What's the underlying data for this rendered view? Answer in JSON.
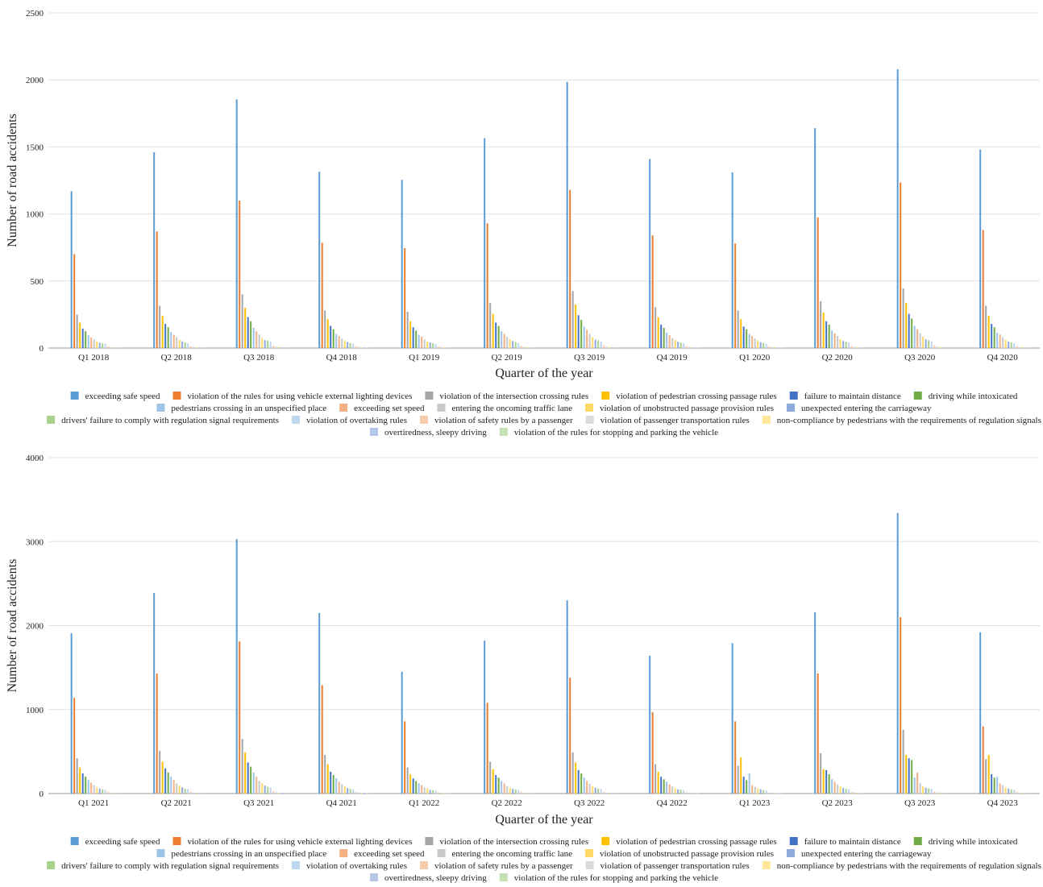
{
  "chart_data": [
    {
      "type": "bar",
      "xlabel": "Quarter of the year",
      "ylabel": "Number of road accidents",
      "ylim": [
        0,
        2500
      ],
      "yticks": [
        0,
        500,
        1000,
        1500,
        2000,
        2500
      ],
      "grid": true,
      "legend_placement": "bottom",
      "categories": [
        "Q1 2018",
        "Q2 2018",
        "Q3 2018",
        "Q4 2018",
        "Q1 2019",
        "Q2 2019",
        "Q3 2019",
        "Q4 2019",
        "Q1 2020",
        "Q2 2020",
        "Q3 2020",
        "Q4 2020"
      ],
      "series": [
        {
          "name": "exceeding safe speed",
          "color": "#5b9bd5",
          "values": [
            1170,
            1460,
            1855,
            1315,
            1255,
            1565,
            1985,
            1410,
            1310,
            1640,
            2080,
            1480
          ]
        },
        {
          "name": "violation of the rules for using vehicle external lighting devices",
          "color": "#ed7d31",
          "values": [
            700,
            870,
            1100,
            785,
            745,
            930,
            1180,
            840,
            780,
            975,
            1235,
            880
          ]
        },
        {
          "name": "violation of the intersection crossing rules",
          "color": "#a5a5a5",
          "values": [
            250,
            315,
            400,
            280,
            270,
            335,
            425,
            305,
            280,
            350,
            445,
            315
          ]
        },
        {
          "name": "violation of pedestrian crossing passage rules",
          "color": "#ffc000",
          "values": [
            190,
            240,
            300,
            215,
            200,
            255,
            325,
            230,
            215,
            265,
            335,
            240
          ]
        },
        {
          "name": "failure to maintain distance",
          "color": "#4472c4",
          "values": [
            145,
            180,
            230,
            165,
            155,
            190,
            245,
            175,
            160,
            200,
            255,
            180
          ]
        },
        {
          "name": "driving while intoxicated",
          "color": "#70ad47",
          "values": [
            125,
            155,
            200,
            140,
            130,
            165,
            210,
            150,
            140,
            175,
            220,
            155
          ]
        },
        {
          "name": "pedestrians crossing in an unspecified place",
          "color": "#9dc3e6",
          "values": [
            95,
            120,
            150,
            105,
            100,
            125,
            160,
            115,
            105,
            130,
            165,
            115
          ]
        },
        {
          "name": "exceeding set speed",
          "color": "#f4b183",
          "values": [
            80,
            100,
            125,
            90,
            85,
            105,
            135,
            95,
            90,
            110,
            140,
            100
          ]
        },
        {
          "name": "entering the oncoming traffic lane",
          "color": "#c9c9c9",
          "values": [
            65,
            80,
            100,
            70,
            65,
            85,
            105,
            75,
            70,
            90,
            110,
            80
          ]
        },
        {
          "name": "violation of unobstructed passage provision rules",
          "color": "#ffd966",
          "values": [
            50,
            60,
            75,
            55,
            50,
            65,
            80,
            60,
            55,
            65,
            85,
            60
          ]
        },
        {
          "name": "unexpected entering the carriageway",
          "color": "#8faadc",
          "values": [
            40,
            50,
            60,
            45,
            42,
            52,
            62,
            47,
            44,
            53,
            65,
            48
          ]
        },
        {
          "name": "drivers' failure to comply with regulation signal requirements",
          "color": "#a9d18e",
          "values": [
            35,
            42,
            55,
            38,
            36,
            45,
            57,
            41,
            38,
            46,
            58,
            42
          ]
        },
        {
          "name": "violation of overtaking rules",
          "color": "#bdd7ee",
          "values": [
            30,
            36,
            46,
            33,
            31,
            38,
            48,
            35,
            32,
            40,
            50,
            36
          ]
        },
        {
          "name": "violation of safety rules by a passenger",
          "color": "#f8cbad",
          "values": [
            12,
            14,
            18,
            13,
            12,
            15,
            19,
            14,
            13,
            16,
            20,
            14
          ]
        },
        {
          "name": "violation of passenger transportation rules",
          "color": "#dbdbdb",
          "values": [
            8,
            10,
            12,
            9,
            8,
            10,
            12,
            9,
            8,
            10,
            13,
            9
          ]
        },
        {
          "name": "non-compliance by pedestrians with the requirements of regulation signals",
          "color": "#ffe699",
          "values": [
            6,
            7,
            9,
            6,
            6,
            7,
            9,
            7,
            6,
            8,
            9,
            7
          ]
        },
        {
          "name": "overtiredness, sleepy driving",
          "color": "#b4c7e7",
          "values": [
            4,
            5,
            6,
            4,
            4,
            5,
            6,
            5,
            4,
            5,
            6,
            5
          ]
        },
        {
          "name": "violation of the rules for stopping and parking the vehicle",
          "color": "#c5e0b4",
          "values": [
            3,
            4,
            5,
            3,
            3,
            4,
            5,
            4,
            3,
            4,
            5,
            4
          ]
        }
      ]
    },
    {
      "type": "bar",
      "xlabel": "Quarter of the year",
      "ylabel": "Number of road accidents",
      "ylim": [
        0,
        4000
      ],
      "yticks": [
        0,
        1000,
        2000,
        3000,
        4000
      ],
      "grid": true,
      "legend_placement": "bottom",
      "categories": [
        "Q1 2021",
        "Q2 2021",
        "Q3 2021",
        "Q4 2021",
        "Q1 2022",
        "Q2 2022",
        "Q3 2022",
        "Q4 2022",
        "Q1 2023",
        "Q2 2023",
        "Q3 2023",
        "Q4 2023"
      ],
      "series": [
        {
          "name": "exceeding safe speed",
          "color": "#5b9bd5",
          "values": [
            1910,
            2390,
            3030,
            2150,
            1450,
            1820,
            2300,
            1640,
            1790,
            2160,
            3340,
            1920
          ]
        },
        {
          "name": "violation of the rules for using vehicle external lighting devices",
          "color": "#ed7d31",
          "values": [
            1140,
            1430,
            1810,
            1290,
            860,
            1080,
            1380,
            970,
            860,
            1430,
            2100,
            800
          ]
        },
        {
          "name": "violation of the intersection crossing rules",
          "color": "#a5a5a5",
          "values": [
            420,
            510,
            650,
            460,
            310,
            380,
            490,
            350,
            330,
            480,
            760,
            410
          ]
        },
        {
          "name": "violation of pedestrian crossing passage rules",
          "color": "#ffc000",
          "values": [
            310,
            380,
            490,
            350,
            230,
            290,
            370,
            260,
            430,
            290,
            460,
            460
          ]
        },
        {
          "name": "failure to maintain distance",
          "color": "#4472c4",
          "values": [
            240,
            300,
            370,
            260,
            180,
            220,
            280,
            200,
            200,
            280,
            420,
            230
          ]
        },
        {
          "name": "driving while intoxicated",
          "color": "#70ad47",
          "values": [
            200,
            250,
            320,
            220,
            150,
            190,
            240,
            170,
            160,
            230,
            400,
            190
          ]
        },
        {
          "name": "pedestrians crossing in an unspecified place",
          "color": "#9dc3e6",
          "values": [
            160,
            200,
            250,
            180,
            120,
            150,
            190,
            140,
            240,
            170,
            190,
            200
          ]
        },
        {
          "name": "exceeding set speed",
          "color": "#f4b183",
          "values": [
            130,
            160,
            200,
            140,
            100,
            120,
            150,
            110,
            100,
            140,
            250,
            120
          ]
        },
        {
          "name": "entering the oncoming traffic lane",
          "color": "#c9c9c9",
          "values": [
            100,
            120,
            150,
            110,
            75,
            90,
            115,
            85,
            80,
            110,
            120,
            100
          ]
        },
        {
          "name": "violation of unobstructed passage provision rules",
          "color": "#ffd966",
          "values": [
            75,
            95,
            120,
            85,
            60,
            70,
            90,
            65,
            60,
            85,
            90,
            75
          ]
        },
        {
          "name": "unexpected entering the carriageway",
          "color": "#8faadc",
          "values": [
            60,
            75,
            95,
            65,
            45,
            55,
            70,
            50,
            50,
            65,
            70,
            60
          ]
        },
        {
          "name": "drivers' failure to comply with regulation signal requirements",
          "color": "#a9d18e",
          "values": [
            50,
            60,
            80,
            55,
            40,
            48,
            60,
            45,
            42,
            58,
            62,
            50
          ]
        },
        {
          "name": "violation of overtaking rules",
          "color": "#bdd7ee",
          "values": [
            45,
            55,
            70,
            50,
            35,
            42,
            54,
            40,
            38,
            52,
            56,
            45
          ]
        },
        {
          "name": "violation of safety rules by a passenger",
          "color": "#f8cbad",
          "values": [
            18,
            22,
            28,
            20,
            14,
            17,
            21,
            16,
            15,
            20,
            22,
            18
          ]
        },
        {
          "name": "violation of passenger transportation rules",
          "color": "#dbdbdb",
          "values": [
            12,
            15,
            19,
            14,
            10,
            12,
            15,
            11,
            10,
            14,
            15,
            12
          ]
        },
        {
          "name": "non-compliance by pedestrians with the requirements of regulation signals",
          "color": "#ffe699",
          "values": [
            9,
            11,
            14,
            10,
            7,
            9,
            11,
            8,
            8,
            10,
            11,
            9
          ]
        },
        {
          "name": "overtiredness, sleepy driving",
          "color": "#b4c7e7",
          "values": [
            6,
            8,
            10,
            7,
            5,
            6,
            8,
            6,
            5,
            7,
            8,
            6
          ]
        },
        {
          "name": "violation of the rules for stopping and parking the vehicle",
          "color": "#c5e0b4",
          "values": [
            5,
            6,
            8,
            5,
            4,
            5,
            6,
            4,
            4,
            5,
            6,
            5
          ]
        }
      ]
    }
  ]
}
